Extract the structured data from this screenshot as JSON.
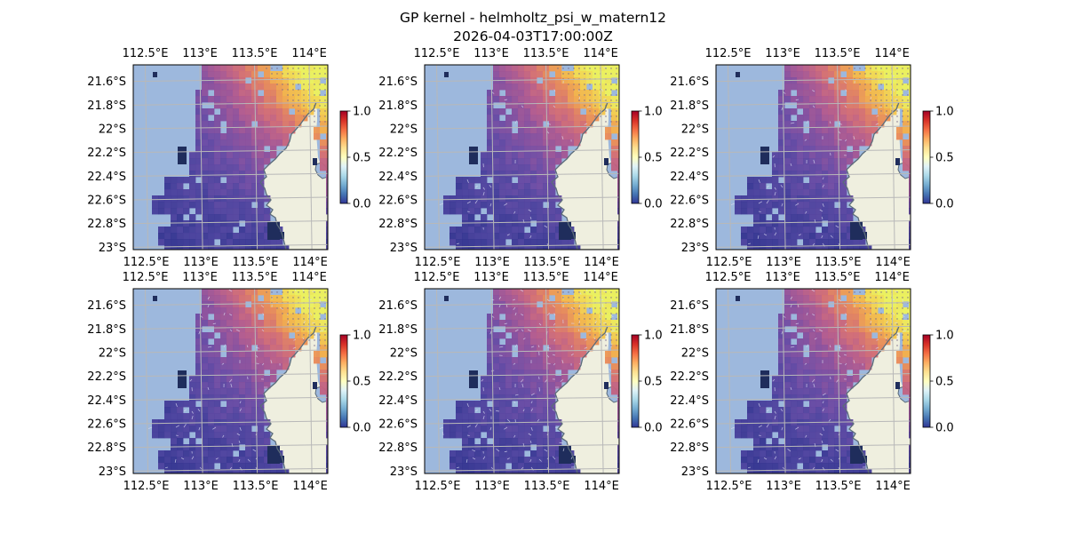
{
  "figure": {
    "title": "GP kernel - helmholtz_psi_w_matern12",
    "timestamp": "2026-04-03T17:00:00Z"
  },
  "axes": {
    "lon_ticks": [
      "112.5°E",
      "113°E",
      "113.5°E",
      "114°E"
    ],
    "lat_ticks": [
      "21.6°S",
      "21.8°S",
      "22°S",
      "22.2°S",
      "22.4°S",
      "22.6°S",
      "22.8°S",
      "23°S"
    ],
    "lon_values": [
      112.5,
      113.0,
      113.5,
      114.0
    ],
    "lat_values": [
      -21.6,
      -21.8,
      -22.0,
      -22.2,
      -22.4,
      -22.6,
      -22.8,
      -23.0
    ],
    "lon_range": [
      112.39,
      114.17
    ],
    "lat_range": [
      -23.02,
      -21.46
    ]
  },
  "colorbar": {
    "ticks": [
      "0.0",
      "0.5",
      "1.0"
    ],
    "tick_values": [
      0.0,
      0.5,
      1.0
    ],
    "range": [
      0,
      1
    ]
  },
  "colors": {
    "ocean": "#9db8dd",
    "land": "#efefdf",
    "coast": "#5b6b7a",
    "gridline": "#b8b8b8",
    "colormap_heat": [
      "#262c86",
      "#4a3f9c",
      "#6c4aa3",
      "#914f9a",
      "#b5598b",
      "#d46b73",
      "#ea8a56",
      "#f6b347",
      "#f5d94e",
      "#eef25a"
    ],
    "colormap_colorbar": [
      "#313695",
      "#4575b4",
      "#74add1",
      "#abd9e9",
      "#e0f3f8",
      "#ffffbf",
      "#fee090",
      "#fdae61",
      "#f46d43",
      "#d73027",
      "#a50026"
    ]
  },
  "panels": [
    {
      "id": "panel-1",
      "arrow_density": 0.0
    },
    {
      "id": "panel-2",
      "arrow_density": 0.25
    },
    {
      "id": "panel-3",
      "arrow_density": 0.45
    },
    {
      "id": "panel-4",
      "arrow_density": 0.55
    },
    {
      "id": "panel-5",
      "arrow_density": 0.9
    },
    {
      "id": "panel-6",
      "arrow_density": 0.65
    }
  ]
}
